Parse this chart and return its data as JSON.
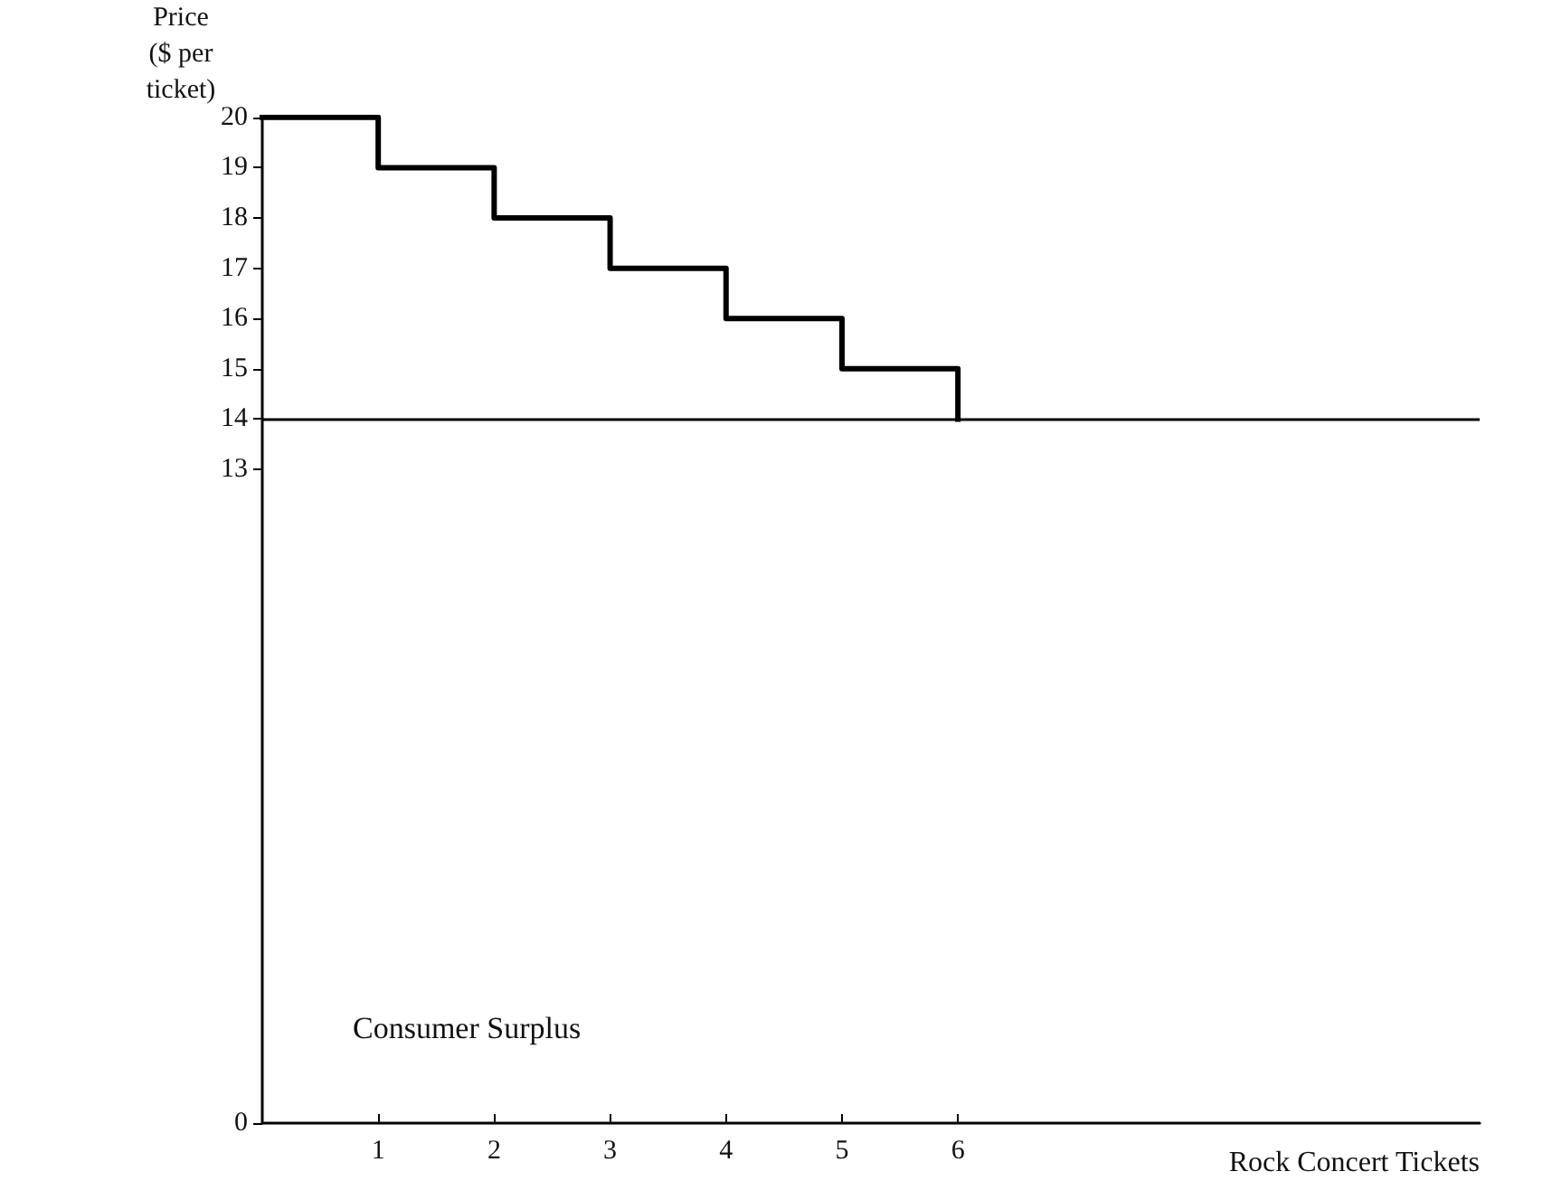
{
  "chart_data": {
    "type": "step",
    "xlabel": "Rock Concert Tickets",
    "ylabel": "Price\n($ per\nticket)",
    "x": [
      0,
      1,
      2,
      3,
      4,
      5,
      6
    ],
    "series": [
      {
        "color": "#000000",
        "values": [
          20,
          19,
          18,
          17,
          16,
          15,
          14
        ]
      }
    ],
    "xlim": [
      0,
      10.5
    ],
    "xticks": [
      1,
      2,
      3,
      4,
      5,
      6
    ],
    "ylim": [
      0,
      20
    ],
    "yticks": [
      0,
      13,
      14,
      15,
      16,
      17,
      18,
      19,
      20
    ],
    "ref_lines": [
      {
        "axis": "y",
        "value": 14,
        "color": "#000000"
      }
    ],
    "annotations": [
      "Consumer Surplus"
    ],
    "grid": false,
    "marker": "none",
    "line_style": "solid"
  }
}
